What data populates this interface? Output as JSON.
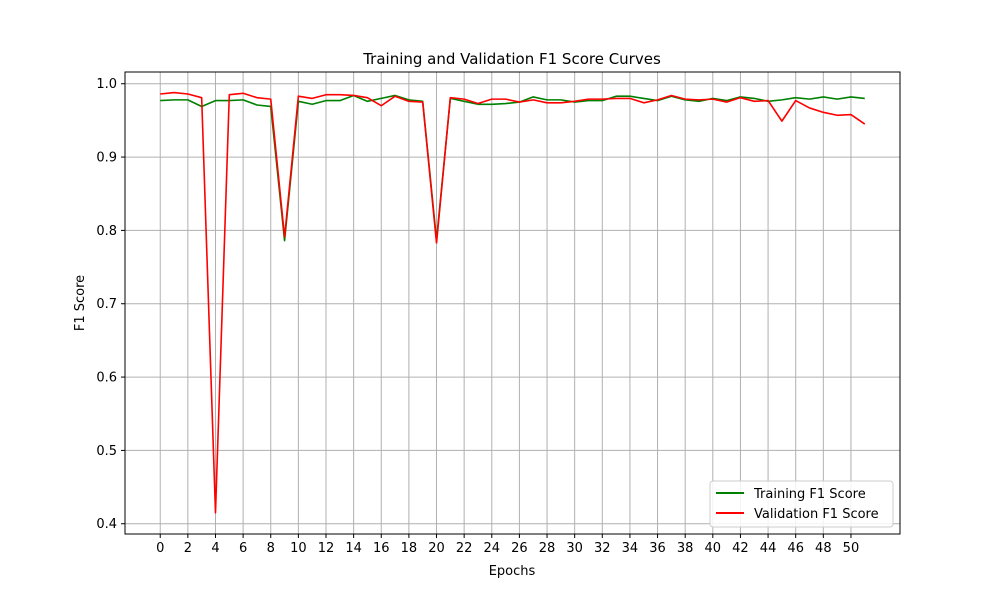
{
  "chart_data": {
    "type": "line",
    "title": "Training and Validation F1 Score Curves",
    "xlabel": "Epochs",
    "ylabel": "F1 Score",
    "xlim": [
      -2.55,
      53.55
    ],
    "ylim": [
      0.386,
      1.016
    ],
    "xticks": [
      0,
      2,
      4,
      6,
      8,
      10,
      12,
      14,
      16,
      18,
      20,
      22,
      24,
      26,
      28,
      30,
      32,
      34,
      36,
      38,
      40,
      42,
      44,
      46,
      48,
      50
    ],
    "yticks": [
      0.4,
      0.5,
      0.6,
      0.7,
      0.8,
      0.9
    ],
    "yticks_top": 1.0,
    "grid": true,
    "legend_position": "lower-right",
    "x": [
      0,
      1,
      2,
      3,
      4,
      5,
      6,
      7,
      8,
      9,
      10,
      11,
      12,
      13,
      14,
      15,
      16,
      17,
      18,
      19,
      20,
      21,
      22,
      23,
      24,
      25,
      26,
      27,
      28,
      29,
      30,
      31,
      32,
      33,
      34,
      35,
      36,
      37,
      38,
      39,
      40,
      41,
      42,
      43,
      44,
      45,
      46,
      47,
      48,
      49,
      50,
      51
    ],
    "series": [
      {
        "name": "Training F1 Score",
        "color": "#008000",
        "values": [
          0.977,
          0.978,
          0.978,
          0.969,
          0.977,
          0.977,
          0.978,
          0.971,
          0.969,
          0.786,
          0.976,
          0.972,
          0.977,
          0.977,
          0.984,
          0.976,
          0.98,
          0.984,
          0.978,
          0.976,
          0.787,
          0.98,
          0.976,
          0.972,
          0.972,
          0.973,
          0.975,
          0.982,
          0.978,
          0.978,
          0.975,
          0.977,
          0.977,
          0.983,
          0.983,
          0.98,
          0.977,
          0.983,
          0.978,
          0.976,
          0.98,
          0.977,
          0.982,
          0.98,
          0.976,
          0.978,
          0.981,
          0.979,
          0.982,
          0.979,
          0.982,
          0.98
        ]
      },
      {
        "name": "Validation F1 Score",
        "color": "#ff0000",
        "values": [
          0.986,
          0.988,
          0.986,
          0.981,
          0.415,
          0.985,
          0.987,
          0.981,
          0.979,
          0.791,
          0.983,
          0.98,
          0.985,
          0.985,
          0.984,
          0.981,
          0.97,
          0.983,
          0.976,
          0.975,
          0.783,
          0.981,
          0.979,
          0.973,
          0.979,
          0.979,
          0.975,
          0.978,
          0.974,
          0.974,
          0.976,
          0.979,
          0.979,
          0.98,
          0.98,
          0.974,
          0.978,
          0.984,
          0.979,
          0.978,
          0.979,
          0.975,
          0.981,
          0.976,
          0.977,
          0.949,
          0.977,
          0.967,
          0.961,
          0.957,
          0.958,
          0.945
        ]
      }
    ]
  }
}
